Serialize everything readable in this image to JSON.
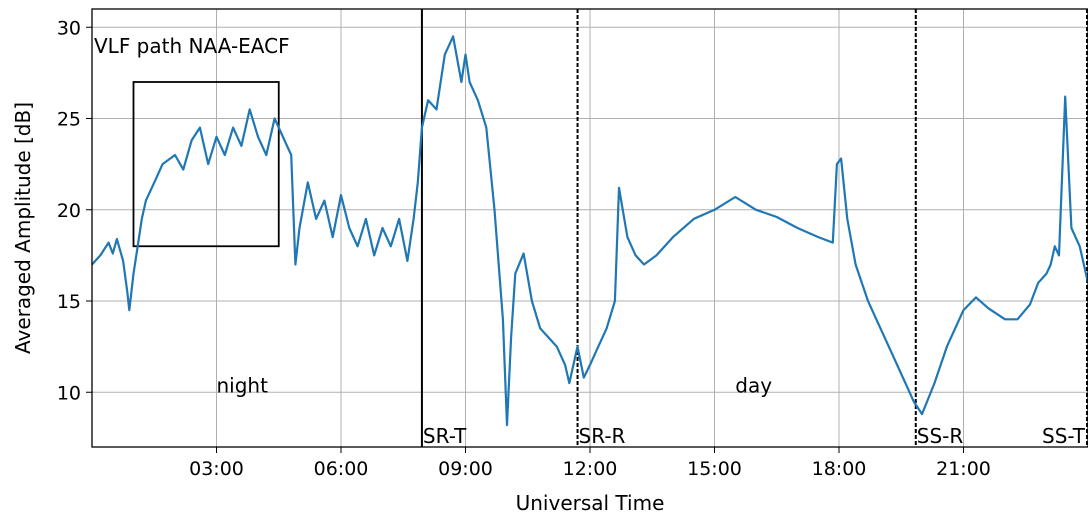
{
  "chart_data": {
    "type": "line",
    "xlabel": "Universal Time",
    "ylabel": "Averaged Amplitude [dB]",
    "x_unit": "hours UT",
    "xlim": [
      0,
      24
    ],
    "ylim": [
      7,
      31
    ],
    "grid": true,
    "x_ticks": [
      {
        "value": 3,
        "label": "03:00"
      },
      {
        "value": 6,
        "label": "06:00"
      },
      {
        "value": 9,
        "label": "09:00"
      },
      {
        "value": 12,
        "label": "12:00"
      },
      {
        "value": 15,
        "label": "15:00"
      },
      {
        "value": 18,
        "label": "18:00"
      },
      {
        "value": 21,
        "label": "21:00"
      }
    ],
    "y_ticks": [
      {
        "value": 10,
        "label": "10"
      },
      {
        "value": 15,
        "label": "15"
      },
      {
        "value": 20,
        "label": "20"
      },
      {
        "value": 25,
        "label": "25"
      },
      {
        "value": 30,
        "label": "30"
      }
    ],
    "series": [
      {
        "color": "#1f77b4",
        "x": [
          0,
          0.2,
          0.4,
          0.5,
          0.6,
          0.75,
          0.85,
          0.9,
          1.0,
          1.1,
          1.2,
          1.3,
          1.5,
          1.7,
          2.0,
          2.2,
          2.4,
          2.6,
          2.8,
          3.0,
          3.2,
          3.4,
          3.6,
          3.8,
          4.0,
          4.2,
          4.4,
          4.6,
          4.8,
          4.9,
          5.0,
          5.2,
          5.4,
          5.6,
          5.8,
          6.0,
          6.2,
          6.4,
          6.6,
          6.8,
          7.0,
          7.2,
          7.4,
          7.6,
          7.75,
          7.85,
          7.95,
          8.1,
          8.3,
          8.5,
          8.7,
          8.9,
          9.0,
          9.1,
          9.3,
          9.5,
          9.7,
          9.9,
          10.0,
          10.1,
          10.2,
          10.4,
          10.6,
          10.8,
          11.0,
          11.2,
          11.4,
          11.5,
          11.6,
          11.7,
          11.85,
          12.0,
          12.2,
          12.4,
          12.6,
          12.7,
          12.9,
          13.1,
          13.3,
          13.6,
          14.0,
          14.5,
          15.0,
          15.5,
          16.0,
          16.5,
          17.0,
          17.5,
          17.85,
          17.95,
          18.05,
          18.2,
          18.4,
          18.7,
          19.0,
          19.3,
          19.6,
          19.8,
          20.0,
          20.3,
          20.6,
          21.0,
          21.3,
          21.6,
          22.0,
          22.3,
          22.6,
          22.8,
          23.0,
          23.1,
          23.2,
          23.3,
          23.45,
          23.6,
          23.8,
          24.0
        ],
        "y": [
          17.0,
          17.5,
          18.2,
          17.6,
          18.4,
          17.2,
          15.5,
          14.5,
          16.5,
          18.0,
          19.5,
          20.5,
          21.5,
          22.5,
          23.0,
          22.2,
          23.8,
          24.5,
          22.5,
          24.0,
          23.0,
          24.5,
          23.5,
          25.5,
          24.0,
          23.0,
          25.0,
          24.0,
          23.0,
          17.0,
          19.0,
          21.5,
          19.5,
          20.5,
          18.5,
          20.8,
          19.0,
          18.0,
          19.5,
          17.5,
          19.0,
          18.0,
          19.5,
          17.2,
          19.5,
          21.5,
          24.5,
          26.0,
          25.5,
          28.5,
          29.5,
          27.0,
          28.5,
          27.0,
          26.0,
          24.5,
          20.0,
          14.0,
          8.2,
          13.0,
          16.5,
          17.6,
          15.0,
          13.5,
          13.0,
          12.5,
          11.5,
          10.5,
          11.5,
          12.5,
          10.8,
          11.5,
          12.5,
          13.5,
          15.0,
          21.2,
          18.5,
          17.5,
          17.0,
          17.5,
          18.5,
          19.5,
          20.0,
          20.7,
          20.0,
          19.6,
          19.0,
          18.5,
          18.2,
          22.5,
          22.8,
          19.5,
          17.0,
          15.0,
          13.5,
          12.0,
          10.5,
          9.5,
          8.8,
          10.5,
          12.5,
          14.5,
          15.2,
          14.6,
          14.0,
          14.0,
          14.8,
          16.0,
          16.5,
          17.0,
          18.0,
          17.5,
          26.2,
          19.0,
          18.0,
          16.0
        ]
      }
    ],
    "vertical_lines": [
      {
        "x": 7.95,
        "style": "solid",
        "label": "SR-T"
      },
      {
        "x": 11.7,
        "style": "dashed",
        "label": "SR-R"
      },
      {
        "x": 19.85,
        "style": "dashed",
        "label": "SS-R"
      },
      {
        "x": 24.0,
        "style": "dashed",
        "label": "SS-T"
      }
    ],
    "box": {
      "x0": 1.0,
      "x1": 4.5,
      "y0": 18,
      "y1": 27
    },
    "annotations": [
      {
        "text": "VLF path NAA-EACF",
        "x": 0.0,
        "y": 28.6
      },
      {
        "text": "night",
        "x": 3.0,
        "y": 10.0
      },
      {
        "text": "day",
        "x": 15.5,
        "y": 10.0
      }
    ]
  }
}
